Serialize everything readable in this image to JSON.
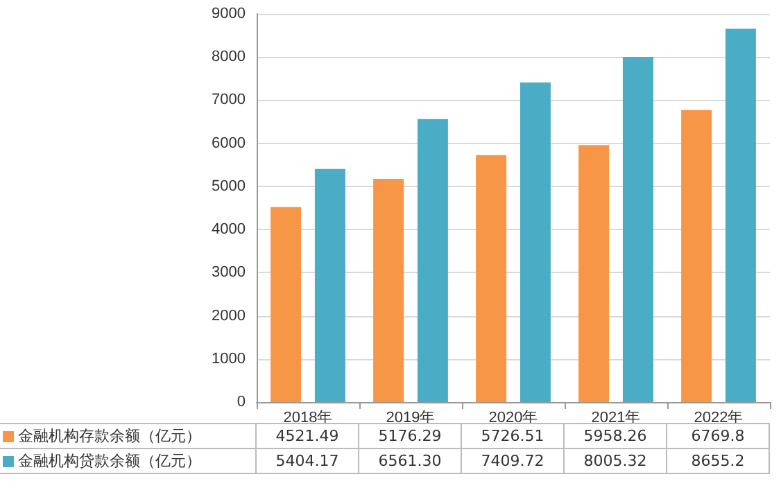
{
  "chart_data": {
    "type": "bar",
    "categories": [
      "2018年",
      "2019年",
      "2020年",
      "2021年",
      "2022年"
    ],
    "series": [
      {
        "name": "金融机构存款余额（亿元）",
        "color": "#f79646",
        "values": [
          4521.49,
          5176.29,
          5726.51,
          5958.26,
          6769.8
        ]
      },
      {
        "name": "金融机构贷款余额（亿元）",
        "color": "#4bacc6",
        "values": [
          5404.17,
          6561.3,
          7409.72,
          8005.32,
          8655.2
        ]
      }
    ],
    "value_labels": [
      [
        "4521.49",
        "5176.29",
        "5726.51",
        "5958.26",
        "6769.8"
      ],
      [
        "5404.17",
        "6561.30",
        "7409.72",
        "8005.32",
        "8655.2"
      ]
    ],
    "ylim": [
      0,
      9000
    ],
    "yticks": [
      0,
      1000,
      2000,
      3000,
      4000,
      5000,
      6000,
      7000,
      8000,
      9000
    ],
    "grid": "y",
    "legend": "bottom"
  }
}
